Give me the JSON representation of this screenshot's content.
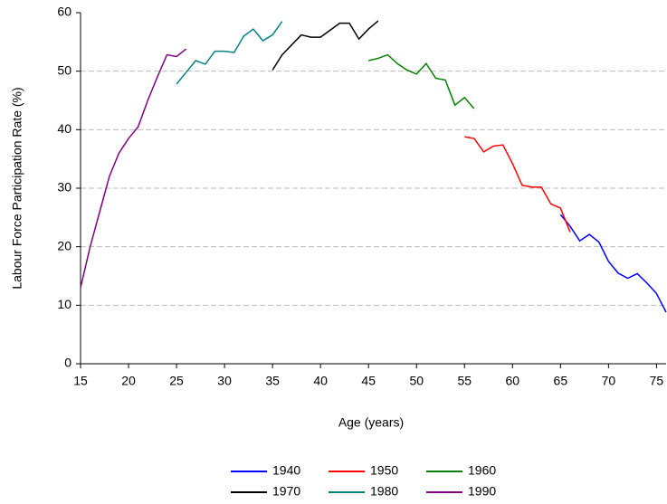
{
  "chart_data": {
    "type": "line",
    "x_label": "Age (years)",
    "y_label": "Labour Force Participation Rate (%)",
    "xlim": [
      15,
      76
    ],
    "xticks": [
      15,
      20,
      25,
      30,
      35,
      40,
      45,
      50,
      55,
      60,
      65,
      70,
      75
    ],
    "ylim": [
      0,
      60
    ],
    "yticks": [
      0,
      10,
      20,
      30,
      40,
      50,
      60
    ],
    "grid": true,
    "legend": "bottom",
    "series": [
      {
        "name": "1940",
        "color": "#0000ff",
        "x": [
          65,
          66,
          67,
          68,
          69,
          70,
          71,
          72,
          73,
          74,
          75,
          76
        ],
        "values": [
          25.5,
          23.5,
          21,
          22.1,
          20.8,
          17.5,
          15.5,
          14.6,
          15.4,
          13.8,
          12,
          8.8
        ]
      },
      {
        "name": "1950",
        "color": "#ff0000",
        "x": [
          55,
          56,
          57,
          58,
          59,
          60,
          61,
          62,
          63,
          64,
          65,
          66
        ],
        "values": [
          38.8,
          38.5,
          36.2,
          37.2,
          37.4,
          34.2,
          30.5,
          30.2,
          30.2,
          27.3,
          26.6,
          22.5
        ]
      },
      {
        "name": "1960",
        "color": "#008000",
        "x": [
          45,
          46,
          47,
          48,
          49,
          50,
          51,
          52,
          53,
          54,
          55,
          56
        ],
        "values": [
          51.8,
          52.2,
          52.8,
          51.3,
          50.2,
          49.5,
          51.3,
          48.8,
          48.5,
          44.2,
          45.5,
          43.6
        ]
      },
      {
        "name": "1970",
        "color": "#000000",
        "x": [
          35,
          36,
          37,
          38,
          39,
          40,
          41,
          42,
          43,
          44,
          45,
          46
        ],
        "values": [
          50.2,
          52.8,
          54.5,
          56.2,
          55.8,
          55.8,
          57,
          58.2,
          58.2,
          55.5,
          57.2,
          58.6
        ]
      },
      {
        "name": "1980",
        "color": "#008080",
        "x": [
          25,
          26,
          27,
          28,
          29,
          30,
          31,
          32,
          33,
          34,
          35,
          36
        ],
        "values": [
          47.8,
          49.8,
          51.8,
          51.2,
          53.4,
          53.4,
          53.2,
          56,
          57.2,
          55.2,
          56.2,
          58.5
        ]
      },
      {
        "name": "1990",
        "color": "#800080",
        "x": [
          15,
          16,
          17,
          18,
          19,
          20,
          21,
          22,
          23,
          24,
          25,
          26
        ],
        "values": [
          13,
          20,
          26,
          32,
          36,
          38.5,
          40.5,
          45,
          49,
          52.8,
          52.5,
          53.8
        ]
      }
    ]
  }
}
